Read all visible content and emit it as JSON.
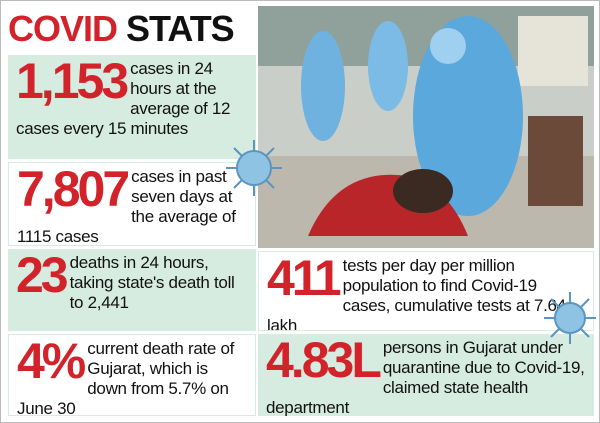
{
  "header": {
    "title_red": "COVID",
    "title_black": "STATS"
  },
  "stats": [
    {
      "number": "1,153",
      "text": "cases in 24 hours at the average of 12 cases every 15 minutes"
    },
    {
      "number": "7,807",
      "text": "cases in past seven days at the average of 1115 cases"
    },
    {
      "number": "23",
      "text": "deaths in 24 hours, taking state's death toll to 2,441"
    },
    {
      "number": "4%",
      "text": "current death rate of Gujarat, which is down from 5.7% on June 30"
    },
    {
      "number": "411",
      "text": "tests per day per million population to find Covid-19 cases, cumulative tests at 7.64 lakh"
    },
    {
      "number": "4.83L",
      "text": "persons in Gujarat under quarantine due to Covid-19, claimed state health department"
    }
  ]
}
